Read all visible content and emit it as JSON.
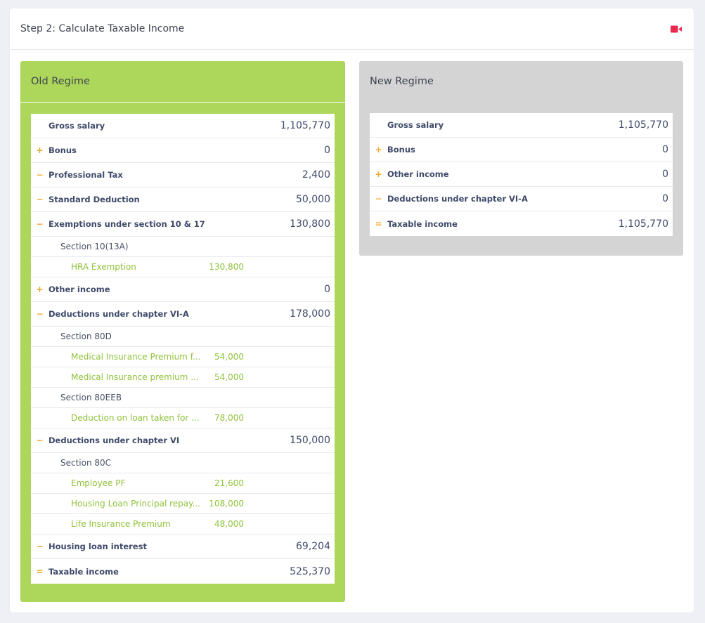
{
  "header": {
    "title": "Step 2: Calculate Taxable Income",
    "video_icon": "video-camera-icon",
    "accent": "#e8284f"
  },
  "old_regime": {
    "title": "Old Regime",
    "color": "#acd75a",
    "rows": {
      "gross": {
        "sign": "",
        "label": "Gross salary",
        "value": "1,105,770"
      },
      "bonus": {
        "sign": "+",
        "label": "Bonus",
        "value": "0"
      },
      "ptax": {
        "sign": "−",
        "label": "Professional Tax",
        "value": "2,400"
      },
      "std": {
        "sign": "−",
        "label": "Standard Deduction",
        "value": "50,000"
      },
      "exempt": {
        "sign": "−",
        "label": "Exemptions under section 10 & 17",
        "value": "130,800"
      },
      "sec10": {
        "label": "Section 10(13A)"
      },
      "hra": {
        "label": "HRA Exemption",
        "value": "130,800"
      },
      "other": {
        "sign": "+",
        "label": "Other income",
        "value": "0"
      },
      "via": {
        "sign": "−",
        "label": "Deductions under chapter VI-A",
        "value": "178,000"
      },
      "sec80d": {
        "label": "Section 80D"
      },
      "med1": {
        "label": "Medical Insurance Premium f...",
        "value": "54,000"
      },
      "med2": {
        "label": "Medical Insurance premium ...",
        "value": "54,000"
      },
      "sec80eeb": {
        "label": "Section 80EEB"
      },
      "loan": {
        "label": "Deduction on loan taken for ...",
        "value": "78,000"
      },
      "vi": {
        "sign": "−",
        "label": "Deductions under chapter VI",
        "value": "150,000"
      },
      "sec80c": {
        "label": "Section 80C"
      },
      "pf": {
        "label": "Employee PF",
        "value": "21,600"
      },
      "hlp": {
        "label": "Housing Loan Principal repay...",
        "value": "108,000"
      },
      "lip": {
        "label": "Life Insurance Premium",
        "value": "48,000"
      },
      "hli": {
        "sign": "−",
        "label": "Housing loan interest",
        "value": "69,204"
      },
      "taxable": {
        "sign": "=",
        "label": "Taxable income",
        "value": "525,370"
      }
    }
  },
  "new_regime": {
    "title": "New Regime",
    "color": "#d4d4d4",
    "rows": {
      "gross": {
        "sign": "",
        "label": "Gross salary",
        "value": "1,105,770"
      },
      "bonus": {
        "sign": "+",
        "label": "Bonus",
        "value": "0"
      },
      "other": {
        "sign": "+",
        "label": "Other income",
        "value": "0"
      },
      "via": {
        "sign": "−",
        "label": "Deductions under chapter VI-A",
        "value": "0"
      },
      "taxable": {
        "sign": "=",
        "label": "Taxable income",
        "value": "1,105,770"
      }
    }
  }
}
